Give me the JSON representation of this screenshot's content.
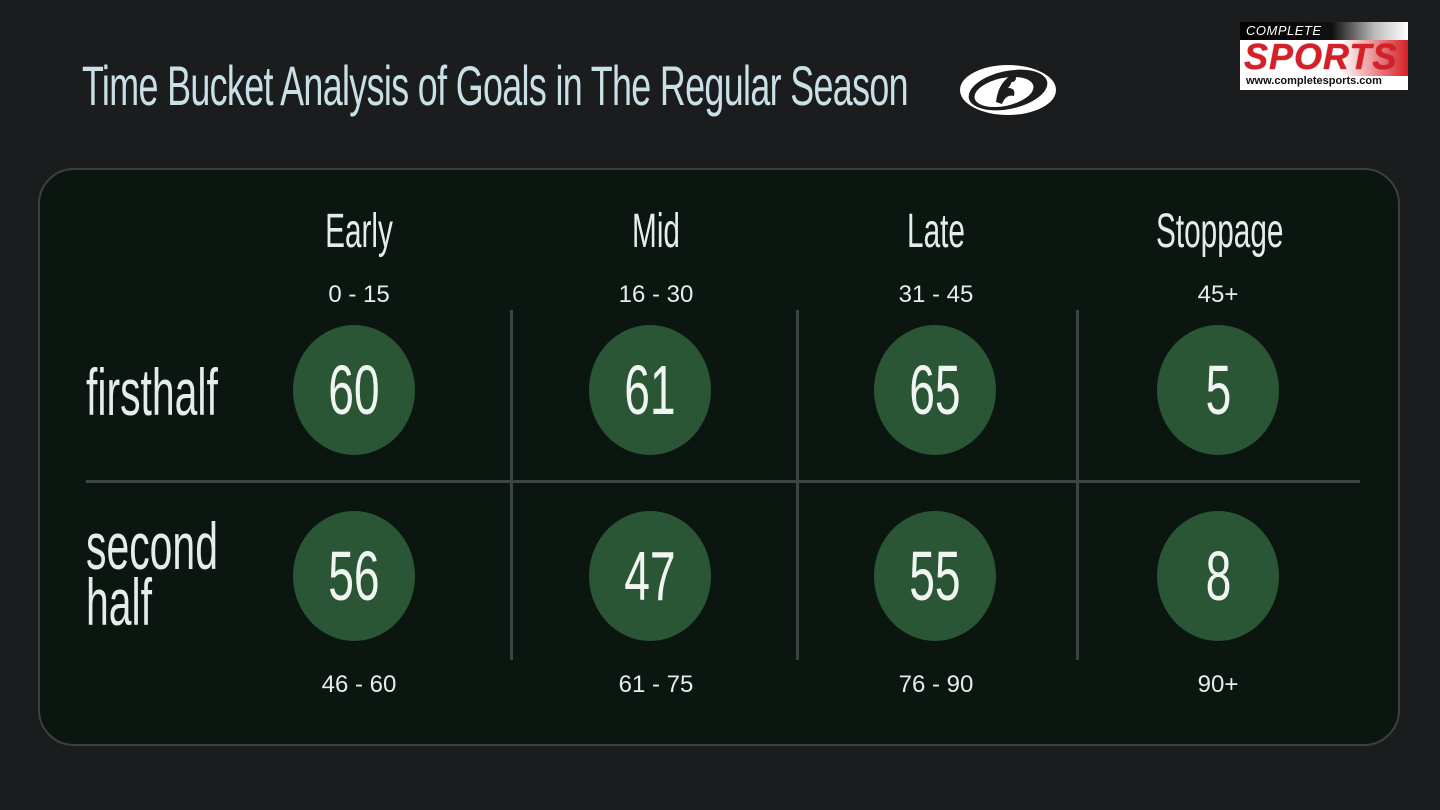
{
  "header": {
    "title": "Time Bucket Analysis of Goals in The Regular Season"
  },
  "brand": {
    "line1": "COMPLETE",
    "line2": "SPORTS",
    "url": "www.completesports.com",
    "colors": {
      "red": "#d61f26",
      "white": "#ffffff"
    }
  },
  "league_logo": {
    "icon": "league-logo-icon"
  },
  "colors": {
    "background": "#1b1c1d",
    "panel": "#0c1611",
    "circle": "#2a5636",
    "title": "#c9e0e6"
  },
  "chart_data": {
    "type": "table",
    "title": "Time Bucket Analysis of Goals in The Regular Season",
    "columns": [
      "Early",
      "Mid",
      "Late",
      "Stoppage"
    ],
    "rows": [
      {
        "name": "firsthalf",
        "ranges": [
          "0 - 15",
          "16 - 30",
          "31 - 45",
          "45+"
        ],
        "values": [
          60,
          61,
          65,
          5
        ]
      },
      {
        "name": "second half",
        "ranges": [
          "46 - 60",
          "61 - 75",
          "76 - 90",
          "90+"
        ],
        "values": [
          56,
          47,
          55,
          8
        ]
      }
    ]
  }
}
